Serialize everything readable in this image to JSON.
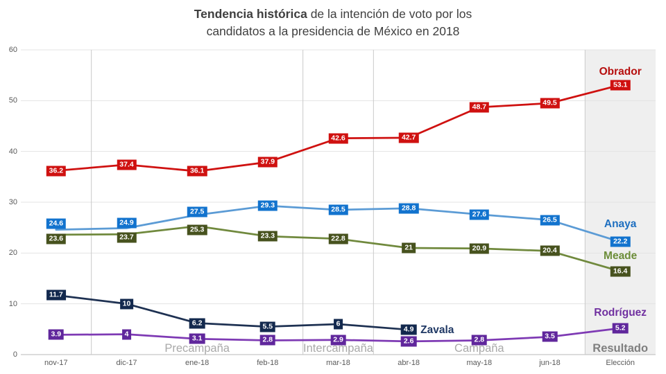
{
  "title": {
    "bold": "Tendencia histórica",
    "rest": " de la intención de voto por los",
    "line2": "candidatos a la presidencia de México en 2018"
  },
  "chart_data": {
    "type": "line",
    "categories": [
      "nov-17",
      "dic-17",
      "ene-18",
      "feb-18",
      "mar-18",
      "abr-18",
      "may-18",
      "jun-18",
      "Elección"
    ],
    "y_axis": {
      "min": 0,
      "max": 60,
      "ticks": [
        0,
        10,
        20,
        30,
        40,
        50,
        60
      ]
    },
    "grid": "horizontal gridlines every 10, vertical phase dividers, legend none",
    "series": [
      {
        "name": "Obrador",
        "key": "obrador",
        "line_color": "#CF1110",
        "box_color": "#CF1110",
        "name_color": "#B60E0D",
        "values": [
          36.2,
          37.4,
          36.1,
          37.9,
          42.6,
          42.7,
          48.7,
          49.5,
          53.1
        ],
        "label_dy": [
          0,
          0,
          0,
          0,
          0,
          0,
          0,
          0,
          0
        ],
        "name_pos": {
          "index": 8,
          "dx": 0,
          "dy": -19,
          "anchor": "middle"
        }
      },
      {
        "name": "Anaya",
        "key": "anaya",
        "line_color": "#5B9BD5",
        "box_color": "#1273CE",
        "name_color": "#1E6FC0",
        "values": [
          24.6,
          24.9,
          27.5,
          29.3,
          28.5,
          28.8,
          27.6,
          26.5,
          22.2
        ],
        "label_dy": [
          -9,
          -7,
          -4,
          0,
          0,
          0,
          0,
          0,
          0
        ],
        "name_pos": {
          "index": 8,
          "dx": 0,
          "dy": -25,
          "anchor": "middle"
        }
      },
      {
        "name": "Meade",
        "key": "meade",
        "line_color": "#70893D",
        "box_color": "#47521E",
        "name_color": "#6C8D39",
        "values": [
          23.6,
          23.7,
          25.3,
          23.3,
          22.8,
          21,
          20.9,
          20.4,
          16.4
        ],
        "label_dy": [
          6,
          5,
          6,
          0,
          0,
          0,
          0,
          0,
          0
        ],
        "name_pos": {
          "index": 8,
          "dx": 0,
          "dy": -22,
          "anchor": "middle"
        }
      },
      {
        "name": "Zavala",
        "key": "zavala",
        "line_color": "#1E3152",
        "box_color": "#13294E",
        "name_color": "#1F3864",
        "values": [
          11.7,
          10,
          6.2,
          5.5,
          6,
          4.9
        ],
        "label_dy": [
          0,
          0,
          0,
          0,
          0,
          0
        ],
        "name_pos": {
          "index": 5,
          "dx": 17,
          "dy": 1,
          "anchor": "start"
        }
      },
      {
        "name": "Rodríguez",
        "key": "rodriguez",
        "line_color": "#7E3AB4",
        "box_color": "#60279C",
        "name_color": "#7030A0",
        "values": [
          3.9,
          4,
          3.1,
          2.8,
          2.9,
          2.6,
          2.8,
          3.5,
          5.2
        ],
        "label_dy": [
          0,
          0,
          0,
          0,
          0,
          0,
          0,
          0,
          0
        ],
        "name_pos": {
          "index": 8,
          "dx": 0,
          "dy": -22,
          "anchor": "middle"
        }
      }
    ],
    "phases": [
      {
        "label": "Precampaña",
        "center_index": 2,
        "emphasis": false
      },
      {
        "label": "Intercampaña",
        "center_index": 4,
        "emphasis": false
      },
      {
        "label": "Campaña",
        "center_index": 6,
        "emphasis": false
      },
      {
        "label": "Resultado",
        "center_index": 8,
        "emphasis": true
      }
    ],
    "dividers": [
      1,
      4,
      5,
      8
    ],
    "shaded": {
      "from_index": 8,
      "to_index": 9
    },
    "colors": {
      "grid": "#E3E3E3",
      "divider": "#C9C9C9",
      "axis": "#B9B9B9",
      "shade": "#EFEFEF",
      "tick_text": "#595959",
      "phase_text": "#A9A9A9",
      "phase_emphasis_text": "#7F7F7F",
      "title_text": "#3F3F3F"
    }
  }
}
